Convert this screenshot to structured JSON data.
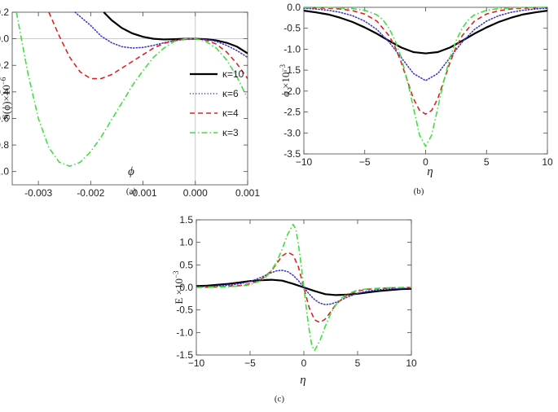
{
  "chart_data": [
    {
      "type": "line",
      "panel_label": "(a)",
      "xlabel": "ϕ",
      "ylabel": "S(ϕ)×10",
      "ylabel_exp": "−6",
      "xlim": [
        -0.0035,
        0.001
      ],
      "ylim": [
        -1.1,
        0.2
      ],
      "xticks": [
        -0.003,
        -0.002,
        -0.001,
        0.0,
        0.001
      ],
      "xtick_labels": [
        "-0.003",
        "-0.002",
        "-0.001",
        "0.000",
        "0.001"
      ],
      "yticks": [
        0.2,
        0.0,
        -0.2,
        -0.4,
        -0.6,
        -0.8,
        -1.0
      ],
      "ytick_labels": [
        "0.2",
        "0.0",
        "-0.2",
        "-0.4",
        "-0.6",
        "-0.8",
        "-1.0"
      ],
      "legend": "right",
      "series": [
        {
          "name": "κ=10",
          "color": "#000000",
          "dash": "solid",
          "x": [
            -0.00175,
            -0.0016,
            -0.0014,
            -0.0012,
            -0.001,
            -0.0008,
            -0.0006,
            -0.0004,
            -0.0002,
            0.0,
            0.0002,
            0.0004,
            0.0006,
            0.0008,
            0.001
          ],
          "y": [
            0.2,
            0.14,
            0.08,
            0.04,
            0.015,
            0.0,
            -0.005,
            -0.003,
            0.0,
            0.0,
            -0.003,
            -0.012,
            -0.03,
            -0.06,
            -0.11
          ]
        },
        {
          "name": "κ=6",
          "color": "#3b3bc8",
          "dash": "dotted",
          "x": [
            -0.0023,
            -0.002,
            -0.0018,
            -0.0016,
            -0.0014,
            -0.0012,
            -0.001,
            -0.0008,
            -0.0006,
            -0.0004,
            -0.0002,
            0.0,
            0.0002,
            0.0004,
            0.0006,
            0.0008,
            0.001
          ],
          "y": [
            0.2,
            0.1,
            0.02,
            -0.03,
            -0.06,
            -0.07,
            -0.065,
            -0.05,
            -0.03,
            -0.015,
            -0.005,
            0.0,
            -0.005,
            -0.02,
            -0.05,
            -0.09,
            -0.14
          ]
        },
        {
          "name": "κ=4",
          "color": "#e02020",
          "dash": "dashed",
          "x": [
            -0.0028,
            -0.0026,
            -0.0024,
            -0.0022,
            -0.002,
            -0.0018,
            -0.0016,
            -0.0014,
            -0.0012,
            -0.001,
            -0.0008,
            -0.0006,
            -0.0004,
            -0.0002,
            0.0,
            0.0002,
            0.0004,
            0.0006,
            0.0008,
            0.001
          ],
          "y": [
            0.2,
            0.02,
            -0.14,
            -0.25,
            -0.3,
            -0.3,
            -0.27,
            -0.22,
            -0.17,
            -0.12,
            -0.07,
            -0.035,
            -0.012,
            -0.002,
            0.0,
            -0.01,
            -0.04,
            -0.1,
            -0.19,
            -0.3
          ]
        },
        {
          "name": "κ=3",
          "color": "#3ee03e",
          "dash": "dashdot",
          "x": [
            -0.00342,
            -0.0032,
            -0.003,
            -0.0028,
            -0.0026,
            -0.0024,
            -0.0022,
            -0.002,
            -0.0018,
            -0.0016,
            -0.0014,
            -0.0012,
            -0.001,
            -0.0008,
            -0.0006,
            -0.0004,
            -0.0002,
            0.0,
            0.0002,
            0.0004,
            0.0006,
            0.0008,
            0.001
          ],
          "y": [
            0.2,
            -0.26,
            -0.6,
            -0.82,
            -0.93,
            -0.96,
            -0.93,
            -0.85,
            -0.74,
            -0.61,
            -0.48,
            -0.35,
            -0.24,
            -0.14,
            -0.07,
            -0.02,
            0.0,
            0.0,
            -0.02,
            -0.07,
            -0.16,
            -0.29,
            -0.45
          ]
        }
      ]
    },
    {
      "type": "line",
      "panel_label": "(b)",
      "xlabel": "η",
      "ylabel": "ϕ ×10",
      "ylabel_exp": "−3",
      "xlim": [
        -10,
        10
      ],
      "ylim": [
        -3.5,
        0.0
      ],
      "xticks": [
        -10,
        -5,
        0,
        5,
        10
      ],
      "xtick_labels": [
        "−10",
        "−5",
        "0",
        "5",
        "10"
      ],
      "yticks": [
        0.0,
        -0.5,
        -1.0,
        -1.5,
        -2.0,
        -2.5,
        -3.0,
        -3.5
      ],
      "ytick_labels": [
        "0.0",
        "-0.5",
        "-1.0",
        "-1.5",
        "-2.0",
        "-2.5",
        "-3.0",
        "-3.5"
      ],
      "series": [
        {
          "name": "κ=10",
          "color": "#000000",
          "dash": "solid",
          "x": [
            -10,
            -9,
            -8,
            -7,
            -6,
            -5,
            -4,
            -3,
            -2,
            -1,
            0,
            1,
            2,
            3,
            4,
            5,
            6,
            7,
            8,
            9,
            10
          ],
          "y": [
            -0.08,
            -0.12,
            -0.17,
            -0.25,
            -0.35,
            -0.48,
            -0.63,
            -0.8,
            -0.96,
            -1.07,
            -1.1,
            -1.07,
            -0.96,
            -0.8,
            -0.63,
            -0.48,
            -0.35,
            -0.25,
            -0.17,
            -0.12,
            -0.08
          ]
        },
        {
          "name": "κ=6",
          "color": "#3b3bc8",
          "dash": "dotted",
          "x": [
            -10,
            -9,
            -8,
            -7,
            -6,
            -5,
            -4,
            -3,
            -2,
            -1,
            0,
            1,
            2,
            3,
            4,
            5,
            6,
            7,
            8,
            9,
            10
          ],
          "y": [
            -0.02,
            -0.04,
            -0.07,
            -0.12,
            -0.2,
            -0.33,
            -0.53,
            -0.83,
            -1.2,
            -1.58,
            -1.75,
            -1.58,
            -1.2,
            -0.83,
            -0.53,
            -0.33,
            -0.2,
            -0.12,
            -0.07,
            -0.04,
            -0.02
          ]
        },
        {
          "name": "κ=4",
          "color": "#e02020",
          "dash": "dashed",
          "x": [
            -10,
            -8,
            -7,
            -6,
            -5,
            -4,
            -3,
            -2.5,
            -2,
            -1.5,
            -1,
            -0.5,
            0,
            0.5,
            1,
            1.5,
            2,
            2.5,
            3,
            4,
            5,
            6,
            7,
            8,
            10
          ],
          "y": [
            -0.005,
            -0.02,
            -0.04,
            -0.08,
            -0.16,
            -0.33,
            -0.68,
            -0.95,
            -1.32,
            -1.75,
            -2.18,
            -2.46,
            -2.55,
            -2.46,
            -2.18,
            -1.75,
            -1.32,
            -0.95,
            -0.68,
            -0.33,
            -0.16,
            -0.08,
            -0.04,
            -0.02,
            -0.005
          ]
        },
        {
          "name": "κ=3",
          "color": "#3ee03e",
          "dash": "dashdot",
          "x": [
            -10,
            -8,
            -6,
            -5,
            -4,
            -3.5,
            -3,
            -2.5,
            -2,
            -1.5,
            -1,
            -0.5,
            0,
            0.5,
            1,
            1.5,
            2,
            2.5,
            3,
            3.5,
            4,
            5,
            6,
            8,
            10
          ],
          "y": [
            0.0,
            -0.005,
            -0.03,
            -0.07,
            -0.18,
            -0.3,
            -0.5,
            -0.8,
            -1.2,
            -1.75,
            -2.4,
            -3.05,
            -3.32,
            -3.05,
            -2.4,
            -1.75,
            -1.2,
            -0.8,
            -0.5,
            -0.3,
            -0.18,
            -0.07,
            -0.03,
            -0.005,
            0.0
          ]
        }
      ]
    },
    {
      "type": "line",
      "panel_label": "(c)",
      "xlabel": "η",
      "ylabel": "E ×10",
      "ylabel_exp": "−3",
      "xlim": [
        -10,
        10
      ],
      "ylim": [
        -1.5,
        1.5
      ],
      "xticks": [
        -10,
        -5,
        0,
        5,
        10
      ],
      "xtick_labels": [
        "−10",
        "−5",
        "0",
        "5",
        "10"
      ],
      "yticks": [
        1.5,
        1.0,
        0.5,
        0.0,
        -0.5,
        -1.0,
        -1.5
      ],
      "ytick_labels": [
        "1.5",
        "1.0",
        "0.5",
        "0.0",
        "-0.5",
        "-1.0",
        "-1.5"
      ],
      "series": [
        {
          "name": "κ=10",
          "color": "#000000",
          "dash": "solid",
          "x": [
            -10,
            -9,
            -8,
            -7,
            -6,
            -5,
            -4,
            -3,
            -2,
            -1,
            0,
            1,
            2,
            3,
            4,
            5,
            6,
            7,
            8,
            9,
            10
          ],
          "y": [
            0.03,
            0.04,
            0.06,
            0.08,
            0.11,
            0.14,
            0.16,
            0.17,
            0.15,
            0.08,
            0.0,
            -0.08,
            -0.15,
            -0.17,
            -0.16,
            -0.14,
            -0.11,
            -0.08,
            -0.06,
            -0.04,
            -0.03
          ]
        },
        {
          "name": "κ=6",
          "color": "#3b3bc8",
          "dash": "dotted",
          "x": [
            -10,
            -8,
            -7,
            -6,
            -5,
            -4,
            -3,
            -2.5,
            -2,
            -1.5,
            -1,
            -0.5,
            0,
            0.5,
            1,
            1.5,
            2,
            2.5,
            3,
            4,
            5,
            6,
            7,
            8,
            10
          ],
          "y": [
            0.01,
            0.03,
            0.05,
            0.08,
            0.13,
            0.22,
            0.33,
            0.37,
            0.38,
            0.35,
            0.27,
            0.15,
            0.0,
            -0.15,
            -0.27,
            -0.35,
            -0.38,
            -0.37,
            -0.33,
            -0.22,
            -0.13,
            -0.08,
            -0.05,
            -0.03,
            -0.01
          ]
        },
        {
          "name": "κ=4",
          "color": "#e02020",
          "dash": "dashed",
          "x": [
            -10,
            -8,
            -6,
            -5,
            -4,
            -3,
            -2.5,
            -2,
            -1.5,
            -1,
            -0.5,
            0,
            0.5,
            1,
            1.5,
            2,
            2.5,
            3,
            4,
            5,
            6,
            8,
            10
          ],
          "y": [
            0.0,
            0.01,
            0.04,
            0.08,
            0.17,
            0.37,
            0.54,
            0.7,
            0.78,
            0.72,
            0.45,
            0.0,
            -0.45,
            -0.72,
            -0.78,
            -0.7,
            -0.54,
            -0.37,
            -0.17,
            -0.08,
            -0.04,
            -0.01,
            0.0
          ]
        },
        {
          "name": "κ=3",
          "color": "#3ee03e",
          "dash": "dashdot",
          "x": [
            -10,
            -8,
            -6,
            -5,
            -4,
            -3.5,
            -3,
            -2.5,
            -2,
            -1.5,
            -1,
            -0.75,
            -0.5,
            -0.25,
            0,
            0.25,
            0.5,
            0.75,
            1,
            1.5,
            2,
            2.5,
            3,
            3.5,
            4,
            5,
            6,
            8,
            10
          ],
          "y": [
            0.0,
            0.005,
            0.03,
            0.06,
            0.15,
            0.24,
            0.38,
            0.58,
            0.86,
            1.18,
            1.4,
            1.3,
            0.95,
            0.5,
            0.0,
            -0.5,
            -0.95,
            -1.3,
            -1.4,
            -1.18,
            -0.86,
            -0.58,
            -0.38,
            -0.24,
            -0.15,
            -0.06,
            -0.03,
            -0.005,
            0.0
          ]
        }
      ]
    }
  ]
}
